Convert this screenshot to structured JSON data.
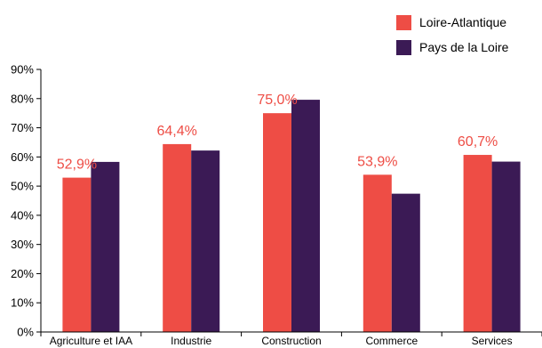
{
  "chart_data": {
    "type": "bar",
    "categories": [
      "Agriculture et IAA",
      "Industrie",
      "Construction",
      "Commerce",
      "Services"
    ],
    "series": [
      {
        "name": "Loire-Atlantique",
        "color": "#ee4d45",
        "values": [
          52.9,
          64.4,
          75.0,
          53.9,
          60.7
        ]
      },
      {
        "name": "Pays de la Loire",
        "color": "#3b1a55",
        "values": [
          58.3,
          62.2,
          79.6,
          47.4,
          58.4
        ]
      }
    ],
    "data_labels": [
      "52,9%",
      "64,4%",
      "75,0%",
      "53,9%",
      "60,7%"
    ],
    "data_label_color": "#ee4d45",
    "yticks": [
      "0%",
      "10%",
      "20%",
      "30%",
      "40%",
      "50%",
      "60%",
      "70%",
      "80%",
      "90%"
    ],
    "ylim": [
      0,
      90
    ],
    "legend_position": "top-right",
    "grid": false
  }
}
